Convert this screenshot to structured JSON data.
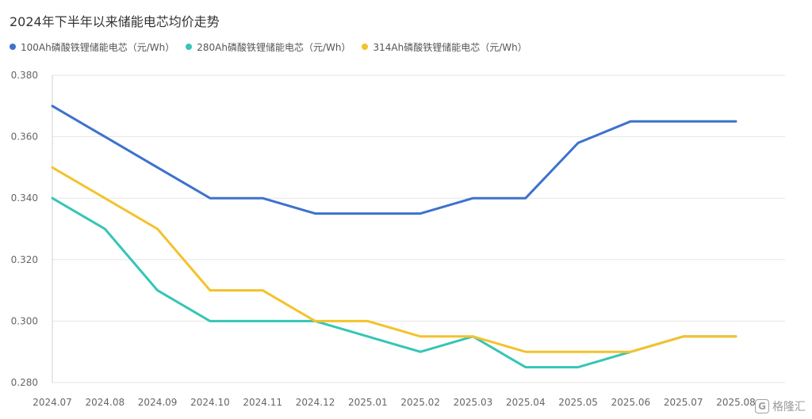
{
  "chart_data": {
    "type": "line",
    "title": "2024年下半年以来储能电芯均价走势",
    "xlabel": "",
    "ylabel": "",
    "categories": [
      "2024.07",
      "2024.08",
      "2024.09",
      "2024.10",
      "2024.11",
      "2024.12",
      "2025.01",
      "2025.02",
      "2025.03",
      "2025.04",
      "2025.05",
      "2025.06",
      "2025.07",
      "2025.08"
    ],
    "ylim": [
      0.28,
      0.38
    ],
    "yticks": [
      "0.380",
      "0.360",
      "0.340",
      "0.320",
      "0.300",
      "0.280"
    ],
    "grid": true,
    "legend_position": "top-left",
    "series": [
      {
        "name": "100Ah磷酸铁锂储能电芯（元/Wh）",
        "color": "#3d72cc",
        "values": [
          0.37,
          0.36,
          0.35,
          0.34,
          0.34,
          0.335,
          0.335,
          0.335,
          0.34,
          0.34,
          0.358,
          0.365,
          0.365,
          0.365
        ]
      },
      {
        "name": "280Ah磷酸铁锂储能电芯（元/Wh）",
        "color": "#36c5b6",
        "values": [
          0.34,
          0.33,
          0.31,
          0.3,
          0.3,
          0.3,
          0.295,
          0.29,
          0.295,
          0.285,
          0.285,
          0.29,
          0.295,
          0.295
        ]
      },
      {
        "name": "314Ah磷酸铁锂储能电芯（元/Wh）",
        "color": "#f4c22b",
        "values": [
          0.35,
          0.34,
          0.33,
          0.31,
          0.31,
          0.3,
          0.3,
          0.295,
          0.295,
          0.29,
          0.29,
          0.29,
          0.295,
          0.295
        ]
      }
    ]
  },
  "watermark": {
    "logo_char": "G",
    "text": "格隆汇"
  }
}
